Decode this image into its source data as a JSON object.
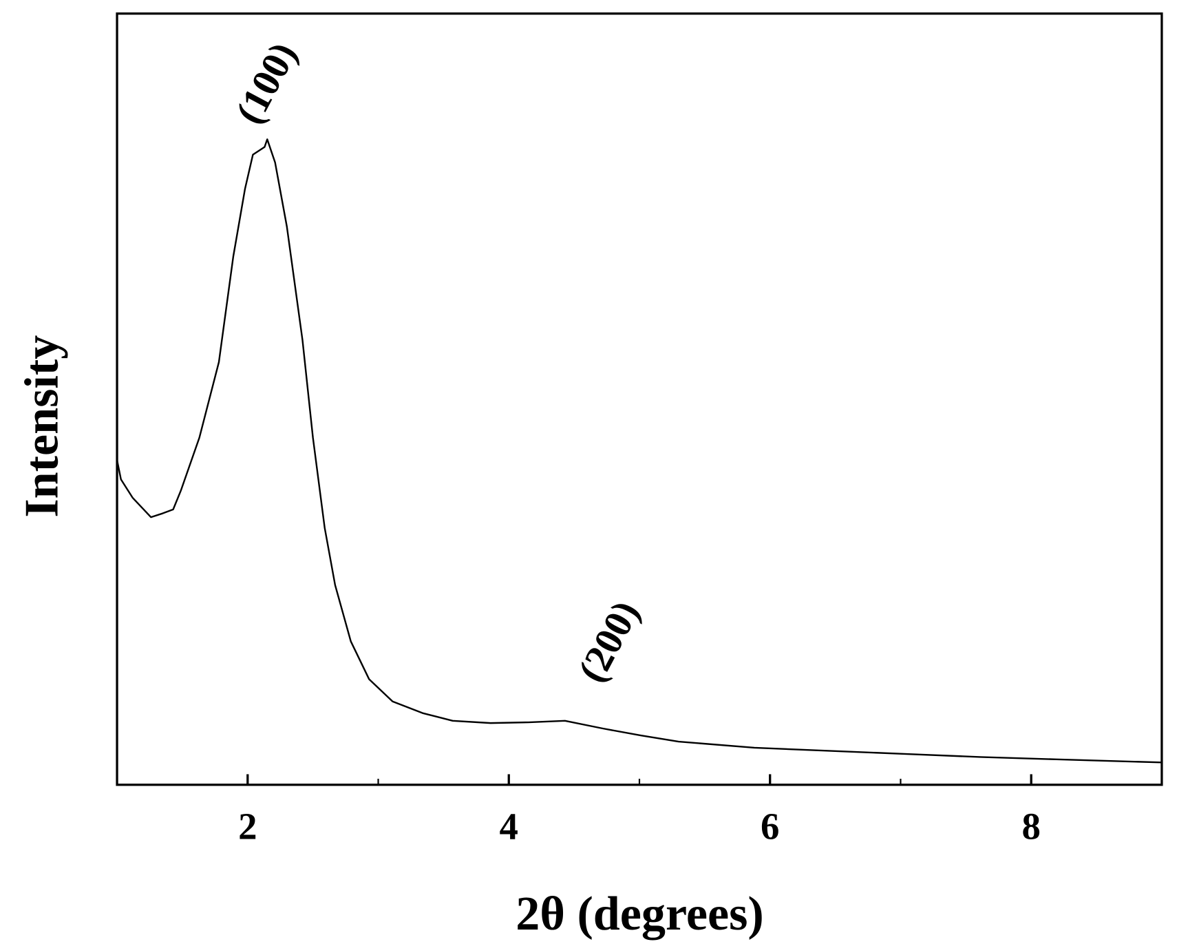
{
  "chart_data": {
    "type": "line",
    "x_label": "2θ (degrees)",
    "y_label": "Intensity",
    "x": [
      1.0,
      1.03,
      1.12,
      1.26,
      1.35,
      1.43,
      1.49,
      1.63,
      1.78,
      1.89,
      1.98,
      2.04,
      2.13,
      2.15,
      2.21,
      2.3,
      2.42,
      2.5,
      2.59,
      2.67,
      2.79,
      2.93,
      3.11,
      3.34,
      3.57,
      3.86,
      4.15,
      4.43,
      4.72,
      5.01,
      5.3,
      5.88,
      6.45,
      7.03,
      7.61,
      8.19,
      9.0
    ],
    "values": [
      42.1,
      39.6,
      37.2,
      34.7,
      35.2,
      35.7,
      38.2,
      45.0,
      54.8,
      68.5,
      77.3,
      81.7,
      82.7,
      83.7,
      80.7,
      72.4,
      57.7,
      45.0,
      33.3,
      25.9,
      18.6,
      13.7,
      10.8,
      9.3,
      8.3,
      8.0,
      8.1,
      8.3,
      7.3,
      6.4,
      5.6,
      4.8,
      4.4,
      4.0,
      3.6,
      3.3,
      2.9
    ],
    "color": "#000000",
    "xlim": [
      1,
      9
    ],
    "xticks": [
      2,
      4,
      6,
      8
    ],
    "xminorticks": [
      3,
      5,
      7
    ],
    "ylim": [
      0,
      100
    ],
    "annotations": [
      {
        "text": "(100)"
      },
      {
        "text": "(200)"
      }
    ]
  }
}
